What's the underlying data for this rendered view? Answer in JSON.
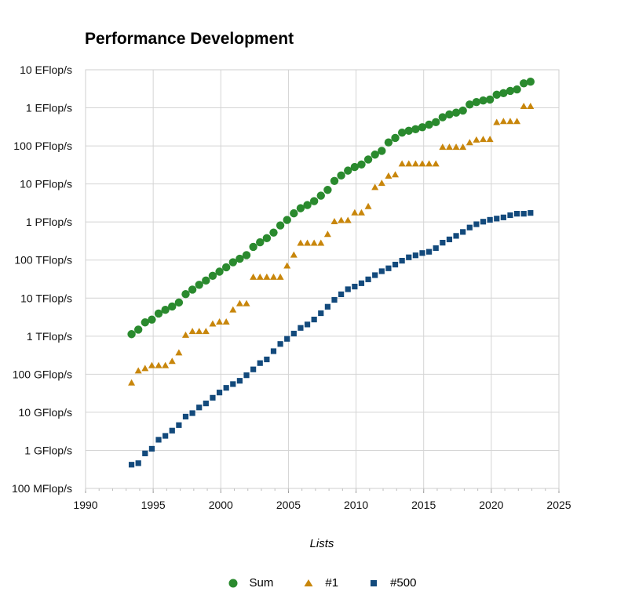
{
  "chart_data": {
    "type": "scatter",
    "title": "Performance Development",
    "xlabel": "Lists",
    "ylabel": "",
    "xlim": [
      1990,
      2025
    ],
    "x_ticks": [
      "1990",
      "1995",
      "2000",
      "2005",
      "2010",
      "2015",
      "2020",
      "2025"
    ],
    "y_scale": "log",
    "ylim_flops": [
      100000000.0,
      1e+19
    ],
    "y_ticks": [
      "100 MFlop/s",
      "1 GFlop/s",
      "10 GFlop/s",
      "100 GFlop/s",
      "1 TFlop/s",
      "10 TFlop/s",
      "100 TFlop/s",
      "1 PFlop/s",
      "10 PFlop/s",
      "100 PFlop/s",
      "1 EFlop/s",
      "10 EFlop/s"
    ],
    "grid": true,
    "legend_position": "bottom",
    "series": [
      {
        "name": "Sum",
        "marker": "circle",
        "color": "#2a8a2e",
        "points": [
          [
            1993.4,
            1130000000000.0
          ],
          [
            1993.9,
            1490000000000.0
          ],
          [
            1994.4,
            2300000000000.0
          ],
          [
            1994.9,
            2730000000000.0
          ],
          [
            1995.4,
            3930000000000.0
          ],
          [
            1995.9,
            4920000000000.0
          ],
          [
            1996.4,
            6030000000000.0
          ],
          [
            1996.9,
            7670000000000.0
          ],
          [
            1997.4,
            12700000000000.0
          ],
          [
            1997.9,
            16700000000000.0
          ],
          [
            1998.4,
            22400000000000.0
          ],
          [
            1998.9,
            29000000000000.0
          ],
          [
            1999.4,
            38600000000000.0
          ],
          [
            1999.9,
            49600000000000.0
          ],
          [
            2000.4,
            64500000000000.0
          ],
          [
            2000.9,
            87600000000000.0
          ],
          [
            2001.4,
            108000000000000.0
          ],
          [
            2001.9,
            135000000000000.0
          ],
          [
            2002.4,
            222000000000000.0
          ],
          [
            2002.9,
            293000000000000.0
          ],
          [
            2003.4,
            375000000000000.0
          ],
          [
            2003.9,
            528000000000000.0
          ],
          [
            2004.4,
            813000000000000.0
          ],
          [
            2004.9,
            1130000000000000.0
          ],
          [
            2005.4,
            1690000000000000.0
          ],
          [
            2005.9,
            2300000000000000.0
          ],
          [
            2006.4,
            2790000000000000.0
          ],
          [
            2006.9,
            3540000000000000.0
          ],
          [
            2007.4,
            4920000000000000.0
          ],
          [
            2007.9,
            6970000000000000.0
          ],
          [
            2008.4,
            1.2e+16
          ],
          [
            2008.9,
            1.67e+16
          ],
          [
            2009.4,
            2.24e+16
          ],
          [
            2009.9,
            2.78e+16
          ],
          [
            2010.4,
            3.25e+16
          ],
          [
            2010.9,
            4.4e+16
          ],
          [
            2011.4,
            5.89e+16
          ],
          [
            2011.9,
            7.4e+16
          ],
          [
            2012.4,
            1.23e+17
          ],
          [
            2012.9,
            1.62e+17
          ],
          [
            2013.4,
            2.23e+17
          ],
          [
            2013.9,
            2.5e+17
          ],
          [
            2014.4,
            2.74e+17
          ],
          [
            2014.9,
            3.09e+17
          ],
          [
            2015.4,
            3.63e+17
          ],
          [
            2015.9,
            4.2e+17
          ],
          [
            2016.4,
            5.66e+17
          ],
          [
            2016.9,
            6.72e+17
          ],
          [
            2017.4,
            7.49e+17
          ],
          [
            2017.9,
            8.45e+17
          ],
          [
            2018.4,
            1.22e+18
          ],
          [
            2018.9,
            1.42e+18
          ],
          [
            2019.4,
            1.56e+18
          ],
          [
            2019.9,
            1.65e+18
          ],
          [
            2020.4,
            2.21e+18
          ],
          [
            2020.9,
            2.43e+18
          ],
          [
            2021.4,
            2.79e+18
          ],
          [
            2021.9,
            3.04e+18
          ],
          [
            2022.4,
            4.4e+18
          ],
          [
            2022.9,
            4.86e+18
          ]
        ]
      },
      {
        "name": "#1",
        "marker": "triangle",
        "color": "#c8860b",
        "points": [
          [
            1993.4,
            59700000000.0
          ],
          [
            1993.9,
            124000000000.0
          ],
          [
            1994.4,
            143000000000.0
          ],
          [
            1994.9,
            170000000000.0
          ],
          [
            1995.4,
            170000000000.0
          ],
          [
            1995.9,
            170000000000.0
          ],
          [
            1996.4,
            220000000000.0
          ],
          [
            1996.9,
            368000000000.0
          ],
          [
            1997.4,
            1070000000000.0
          ],
          [
            1997.9,
            1340000000000.0
          ],
          [
            1998.4,
            1340000000000.0
          ],
          [
            1998.9,
            1340000000000.0
          ],
          [
            1999.4,
            2120000000000.0
          ],
          [
            1999.9,
            2380000000000.0
          ],
          [
            2000.4,
            2380000000000.0
          ],
          [
            2000.9,
            4940000000000.0
          ],
          [
            2001.4,
            7230000000000.0
          ],
          [
            2001.9,
            7230000000000.0
          ],
          [
            2002.4,
            35900000000000.0
          ],
          [
            2002.9,
            35900000000000.0
          ],
          [
            2003.4,
            35900000000000.0
          ],
          [
            2003.9,
            35900000000000.0
          ],
          [
            2004.4,
            35900000000000.0
          ],
          [
            2004.9,
            70700000000000.0
          ],
          [
            2005.4,
            137000000000000.0
          ],
          [
            2005.9,
            281000000000000.0
          ],
          [
            2006.4,
            281000000000000.0
          ],
          [
            2006.9,
            281000000000000.0
          ],
          [
            2007.4,
            281000000000000.0
          ],
          [
            2007.9,
            478000000000000.0
          ],
          [
            2008.4,
            1030000000000000.0
          ],
          [
            2008.9,
            1110000000000000.0
          ],
          [
            2009.4,
            1110000000000000.0
          ],
          [
            2009.9,
            1760000000000000.0
          ],
          [
            2010.4,
            1760000000000000.0
          ],
          [
            2010.9,
            2570000000000000.0
          ],
          [
            2011.4,
            8160000000000000.0
          ],
          [
            2011.9,
            1.05e+16
          ],
          [
            2012.4,
            1.63e+16
          ],
          [
            2012.9,
            1.76e+16
          ],
          [
            2013.4,
            3.39e+16
          ],
          [
            2013.9,
            3.39e+16
          ],
          [
            2014.4,
            3.39e+16
          ],
          [
            2014.9,
            3.39e+16
          ],
          [
            2015.4,
            3.39e+16
          ],
          [
            2015.9,
            3.39e+16
          ],
          [
            2016.4,
            9.3e+16
          ],
          [
            2016.9,
            9.3e+16
          ],
          [
            2017.4,
            9.3e+16
          ],
          [
            2017.9,
            9.3e+16
          ],
          [
            2018.4,
            1.23e+17
          ],
          [
            2018.9,
            1.44e+17
          ],
          [
            2019.4,
            1.49e+17
          ],
          [
            2019.9,
            1.49e+17
          ],
          [
            2020.4,
            4.16e+17
          ],
          [
            2020.9,
            4.42e+17
          ],
          [
            2021.4,
            4.42e+17
          ],
          [
            2021.9,
            4.42e+17
          ],
          [
            2022.4,
            1.1e+18
          ],
          [
            2022.9,
            1.1e+18
          ]
        ]
      },
      {
        "name": "#500",
        "marker": "square",
        "color": "#134a7c",
        "points": [
          [
            1993.4,
            420000000.0
          ],
          [
            1993.9,
            460000000.0
          ],
          [
            1994.4,
            830000000.0
          ],
          [
            1994.9,
            1100000000.0
          ],
          [
            1995.4,
            1900000000.0
          ],
          [
            1995.9,
            2400000000.0
          ],
          [
            1996.4,
            3300000000.0
          ],
          [
            1996.9,
            4600000000.0
          ],
          [
            1997.4,
            7700000000.0
          ],
          [
            1997.9,
            9500000000.0
          ],
          [
            1998.4,
            13400000000.0
          ],
          [
            1998.9,
            17100000000.0
          ],
          [
            1999.4,
            24100000000.0
          ],
          [
            1999.9,
            33100000000.0
          ],
          [
            2000.4,
            43900000000.0
          ],
          [
            2000.9,
            55100000000.0
          ],
          [
            2001.4,
            67300000000.0
          ],
          [
            2001.9,
            94100000000.0
          ],
          [
            2002.4,
            134000000000.0
          ],
          [
            2002.9,
            196000000000.0
          ],
          [
            2003.4,
            245000000000.0
          ],
          [
            2003.9,
            403000000000.0
          ],
          [
            2004.4,
            624000000000.0
          ],
          [
            2004.9,
            851000000000.0
          ],
          [
            2005.4,
            1170000000000.0
          ],
          [
            2005.9,
            1650000000000.0
          ],
          [
            2006.4,
            2030000000000.0
          ],
          [
            2006.9,
            2740000000000.0
          ],
          [
            2007.4,
            4010000000000.0
          ],
          [
            2007.9,
            5930000000000.0
          ],
          [
            2008.4,
            9000000000000.0
          ],
          [
            2008.9,
            12600000000000.0
          ],
          [
            2009.4,
            17100000000000.0
          ],
          [
            2009.9,
            20100000000000.0
          ],
          [
            2010.4,
            24600000000000.0
          ],
          [
            2010.9,
            31100000000000.0
          ],
          [
            2011.4,
            40100000000000.0
          ],
          [
            2011.9,
            50900000000000.0
          ],
          [
            2012.4,
            60700000000000.0
          ],
          [
            2012.9,
            76000000000000.0
          ],
          [
            2013.4,
            96100000000000.0
          ],
          [
            2013.9,
            118000000000000.0
          ],
          [
            2014.4,
            133000000000000.0
          ],
          [
            2014.9,
            153000000000000.0
          ],
          [
            2015.4,
            165000000000000.0
          ],
          [
            2015.9,
            206000000000000.0
          ],
          [
            2016.4,
            286000000000000.0
          ],
          [
            2016.9,
            349000000000000.0
          ],
          [
            2017.4,
            432000000000000.0
          ],
          [
            2017.9,
            548000000000000.0
          ],
          [
            2018.4,
            716000000000000.0
          ],
          [
            2018.9,
            873000000000000.0
          ],
          [
            2019.4,
            1020000000000000.0
          ],
          [
            2019.9,
            1140000000000000.0
          ],
          [
            2020.4,
            1230000000000000.0
          ],
          [
            2020.9,
            1320000000000000.0
          ],
          [
            2021.4,
            1510000000000000.0
          ],
          [
            2021.9,
            1650000000000000.0
          ],
          [
            2022.4,
            1650000000000000.0
          ],
          [
            2022.9,
            1730000000000000.0
          ]
        ]
      }
    ]
  }
}
